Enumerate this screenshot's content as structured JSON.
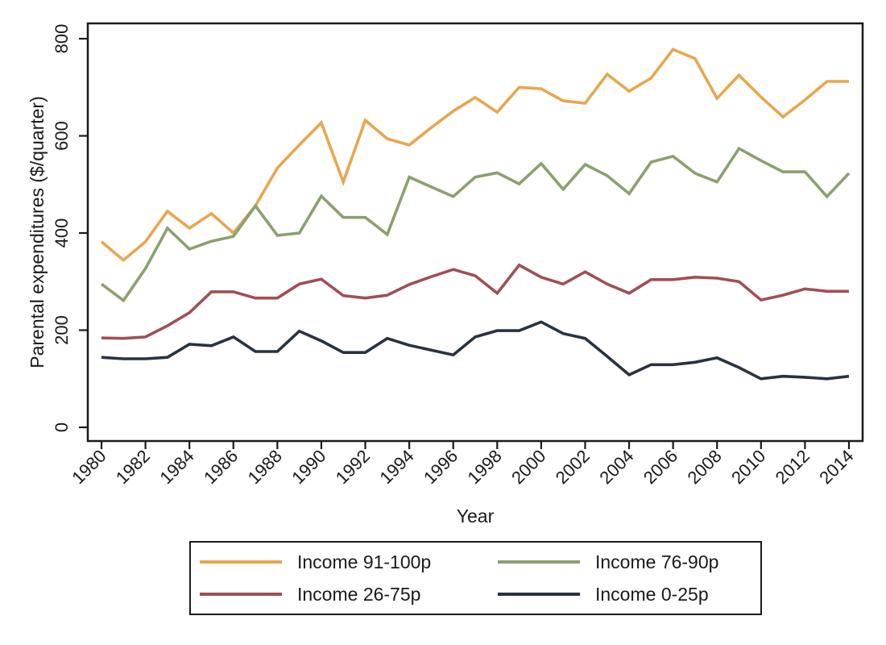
{
  "chart_data": {
    "type": "line",
    "title": "",
    "xlabel": "Year",
    "ylabel": "Parental expenditures ($/quarter)",
    "xlim": [
      1980,
      2014
    ],
    "ylim": [
      0,
      800
    ],
    "grid": false,
    "legend_position": "bottom",
    "y_ticks": [
      0,
      200,
      400,
      600,
      800
    ],
    "x_ticks": [
      1980,
      1982,
      1984,
      1986,
      1988,
      1990,
      1992,
      1994,
      1996,
      1998,
      2000,
      2002,
      2004,
      2006,
      2008,
      2010,
      2012,
      2014
    ],
    "x": [
      1980,
      1981,
      1982,
      1983,
      1984,
      1985,
      1986,
      1987,
      1988,
      1989,
      1990,
      1991,
      1992,
      1993,
      1994,
      1995,
      1996,
      1997,
      1998,
      1999,
      2000,
      2001,
      2002,
      2003,
      2004,
      2005,
      2006,
      2007,
      2008,
      2009,
      2010,
      2011,
      2012,
      2013,
      2014
    ],
    "series": [
      {
        "name": "Income 91-100p",
        "color": "#E8A64E",
        "values": [
          382,
          344,
          382,
          445,
          410,
          440,
          400,
          456,
          534,
          581,
          627,
          505,
          632,
          594,
          581,
          617,
          651,
          679,
          649,
          700,
          697,
          672,
          667,
          727,
          692,
          719,
          778,
          759,
          677,
          725,
          680,
          639,
          674,
          712,
          712
        ]
      },
      {
        "name": "Income 76-90p",
        "color": "#8CA06F",
        "values": [
          295,
          261,
          327,
          410,
          367,
          383,
          393,
          456,
          395,
          400,
          476,
          432,
          432,
          397,
          515,
          495,
          475,
          515,
          524,
          501,
          543,
          490,
          541,
          518,
          481,
          546,
          558,
          523,
          505,
          574,
          549,
          526,
          526,
          475,
          523
        ]
      },
      {
        "name": "Income 26-75p",
        "color": "#A04E55",
        "values": [
          184,
          183,
          186,
          209,
          236,
          279,
          279,
          266,
          266,
          295,
          305,
          271,
          266,
          272,
          294,
          310,
          325,
          312,
          276,
          334,
          309,
          295,
          320,
          295,
          276,
          304,
          304,
          309,
          307,
          300,
          262,
          272,
          285,
          280,
          280
        ]
      },
      {
        "name": "Income 0-25p",
        "color": "#283341",
        "values": [
          144,
          141,
          141,
          144,
          171,
          168,
          186,
          156,
          156,
          198,
          178,
          154,
          154,
          183,
          169,
          159,
          149,
          186,
          199,
          199,
          217,
          193,
          183,
          146,
          108,
          129,
          129,
          134,
          143,
          123,
          100,
          105,
          103,
          100,
          105
        ]
      }
    ]
  }
}
